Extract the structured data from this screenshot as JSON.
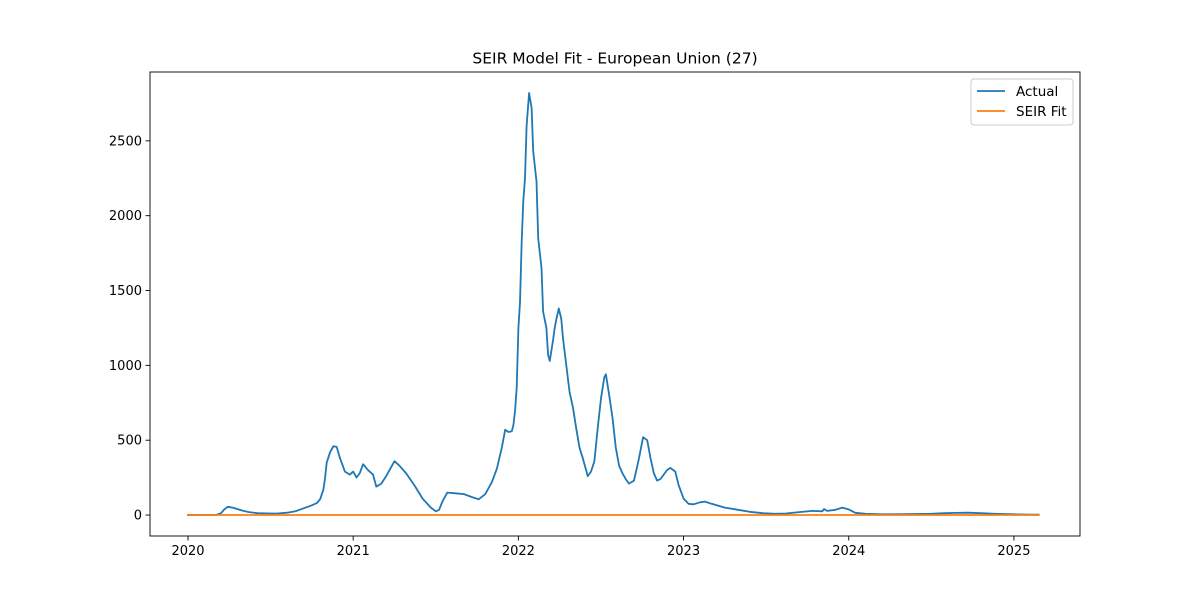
{
  "chart_data": {
    "type": "line",
    "title": "SEIR Model Fit - European Union (27)",
    "xlabel": "",
    "ylabel": "",
    "x_ticks": [
      "2020",
      "2021",
      "2022",
      "2023",
      "2024",
      "2025"
    ],
    "y_ticks": [
      "0",
      "500",
      "1000",
      "1500",
      "2000",
      "2500"
    ],
    "xlim": [
      2019.77,
      2025.4
    ],
    "ylim": [
      -140,
      2960
    ],
    "grid": false,
    "legend_position": "upper-right",
    "series": [
      {
        "name": "Actual",
        "color": "#1f77b4",
        "points": [
          [
            2020.0,
            0
          ],
          [
            2020.17,
            0
          ],
          [
            2020.2,
            12
          ],
          [
            2020.22,
            38
          ],
          [
            2020.24,
            55
          ],
          [
            2020.27,
            50
          ],
          [
            2020.3,
            40
          ],
          [
            2020.33,
            30
          ],
          [
            2020.37,
            20
          ],
          [
            2020.42,
            12
          ],
          [
            2020.5,
            10
          ],
          [
            2020.55,
            11
          ],
          [
            2020.6,
            16
          ],
          [
            2020.65,
            25
          ],
          [
            2020.7,
            45
          ],
          [
            2020.75,
            65
          ],
          [
            2020.78,
            80
          ],
          [
            2020.8,
            105
          ],
          [
            2020.82,
            170
          ],
          [
            2020.83,
            250
          ],
          [
            2020.84,
            350
          ],
          [
            2020.86,
            420
          ],
          [
            2020.88,
            460
          ],
          [
            2020.9,
            455
          ],
          [
            2020.92,
            380
          ],
          [
            2020.95,
            290
          ],
          [
            2020.98,
            270
          ],
          [
            2021.0,
            290
          ],
          [
            2021.02,
            250
          ],
          [
            2021.04,
            280
          ],
          [
            2021.06,
            340
          ],
          [
            2021.09,
            300
          ],
          [
            2021.12,
            270
          ],
          [
            2021.14,
            190
          ],
          [
            2021.17,
            210
          ],
          [
            2021.2,
            260
          ],
          [
            2021.23,
            320
          ],
          [
            2021.25,
            360
          ],
          [
            2021.28,
            330
          ],
          [
            2021.32,
            280
          ],
          [
            2021.37,
            200
          ],
          [
            2021.42,
            110
          ],
          [
            2021.47,
            50
          ],
          [
            2021.5,
            25
          ],
          [
            2021.52,
            35
          ],
          [
            2021.54,
            90
          ],
          [
            2021.57,
            150
          ],
          [
            2021.62,
            145
          ],
          [
            2021.67,
            140
          ],
          [
            2021.72,
            120
          ],
          [
            2021.76,
            105
          ],
          [
            2021.8,
            140
          ],
          [
            2021.84,
            220
          ],
          [
            2021.87,
            310
          ],
          [
            2021.9,
            450
          ],
          [
            2021.92,
            570
          ],
          [
            2021.94,
            555
          ],
          [
            2021.96,
            560
          ],
          [
            2021.97,
            600
          ],
          [
            2021.98,
            700
          ],
          [
            2021.99,
            850
          ],
          [
            2022.0,
            1250
          ],
          [
            2022.01,
            1420
          ],
          [
            2022.02,
            1830
          ],
          [
            2022.03,
            2100
          ],
          [
            2022.04,
            2250
          ],
          [
            2022.05,
            2600
          ],
          [
            2022.065,
            2820
          ],
          [
            2022.08,
            2720
          ],
          [
            2022.09,
            2430
          ],
          [
            2022.11,
            2230
          ],
          [
            2022.12,
            1850
          ],
          [
            2022.14,
            1650
          ],
          [
            2022.15,
            1360
          ],
          [
            2022.17,
            1250
          ],
          [
            2022.18,
            1070
          ],
          [
            2022.19,
            1030
          ],
          [
            2022.21,
            1170
          ],
          [
            2022.22,
            1250
          ],
          [
            2022.23,
            1310
          ],
          [
            2022.245,
            1380
          ],
          [
            2022.26,
            1310
          ],
          [
            2022.27,
            1180
          ],
          [
            2022.29,
            1000
          ],
          [
            2022.31,
            820
          ],
          [
            2022.33,
            720
          ],
          [
            2022.35,
            580
          ],
          [
            2022.37,
            450
          ],
          [
            2022.39,
            380
          ],
          [
            2022.41,
            300
          ],
          [
            2022.42,
            260
          ],
          [
            2022.44,
            290
          ],
          [
            2022.46,
            360
          ],
          [
            2022.48,
            580
          ],
          [
            2022.5,
            780
          ],
          [
            2022.52,
            920
          ],
          [
            2022.53,
            940
          ],
          [
            2022.55,
            800
          ],
          [
            2022.57,
            650
          ],
          [
            2022.59,
            450
          ],
          [
            2022.61,
            330
          ],
          [
            2022.63,
            280
          ],
          [
            2022.65,
            240
          ],
          [
            2022.67,
            210
          ],
          [
            2022.7,
            230
          ],
          [
            2022.73,
            380
          ],
          [
            2022.755,
            520
          ],
          [
            2022.78,
            500
          ],
          [
            2022.8,
            380
          ],
          [
            2022.82,
            280
          ],
          [
            2022.84,
            230
          ],
          [
            2022.86,
            240
          ],
          [
            2022.88,
            270
          ],
          [
            2022.9,
            300
          ],
          [
            2022.92,
            315
          ],
          [
            2022.95,
            290
          ],
          [
            2022.97,
            200
          ],
          [
            2023.0,
            110
          ],
          [
            2023.03,
            75
          ],
          [
            2023.06,
            72
          ],
          [
            2023.1,
            85
          ],
          [
            2023.13,
            90
          ],
          [
            2023.17,
            75
          ],
          [
            2023.25,
            50
          ],
          [
            2023.33,
            35
          ],
          [
            2023.4,
            22
          ],
          [
            2023.48,
            12
          ],
          [
            2023.55,
            8
          ],
          [
            2023.62,
            10
          ],
          [
            2023.7,
            20
          ],
          [
            2023.78,
            28
          ],
          [
            2023.84,
            25
          ],
          [
            2023.85,
            40
          ],
          [
            2023.87,
            28
          ],
          [
            2023.92,
            35
          ],
          [
            2023.96,
            50
          ],
          [
            2024.0,
            38
          ],
          [
            2024.04,
            15
          ],
          [
            2024.1,
            8
          ],
          [
            2024.2,
            5
          ],
          [
            2024.35,
            6
          ],
          [
            2024.5,
            8
          ],
          [
            2024.58,
            12
          ],
          [
            2024.65,
            14
          ],
          [
            2024.72,
            16
          ],
          [
            2024.8,
            12
          ],
          [
            2024.88,
            8
          ],
          [
            2025.0,
            5
          ],
          [
            2025.1,
            3
          ],
          [
            2025.15,
            2
          ]
        ]
      },
      {
        "name": "SEIR Fit",
        "color": "#ff7f0e",
        "points": [
          [
            2020.0,
            0
          ],
          [
            2025.15,
            0
          ]
        ]
      }
    ]
  }
}
